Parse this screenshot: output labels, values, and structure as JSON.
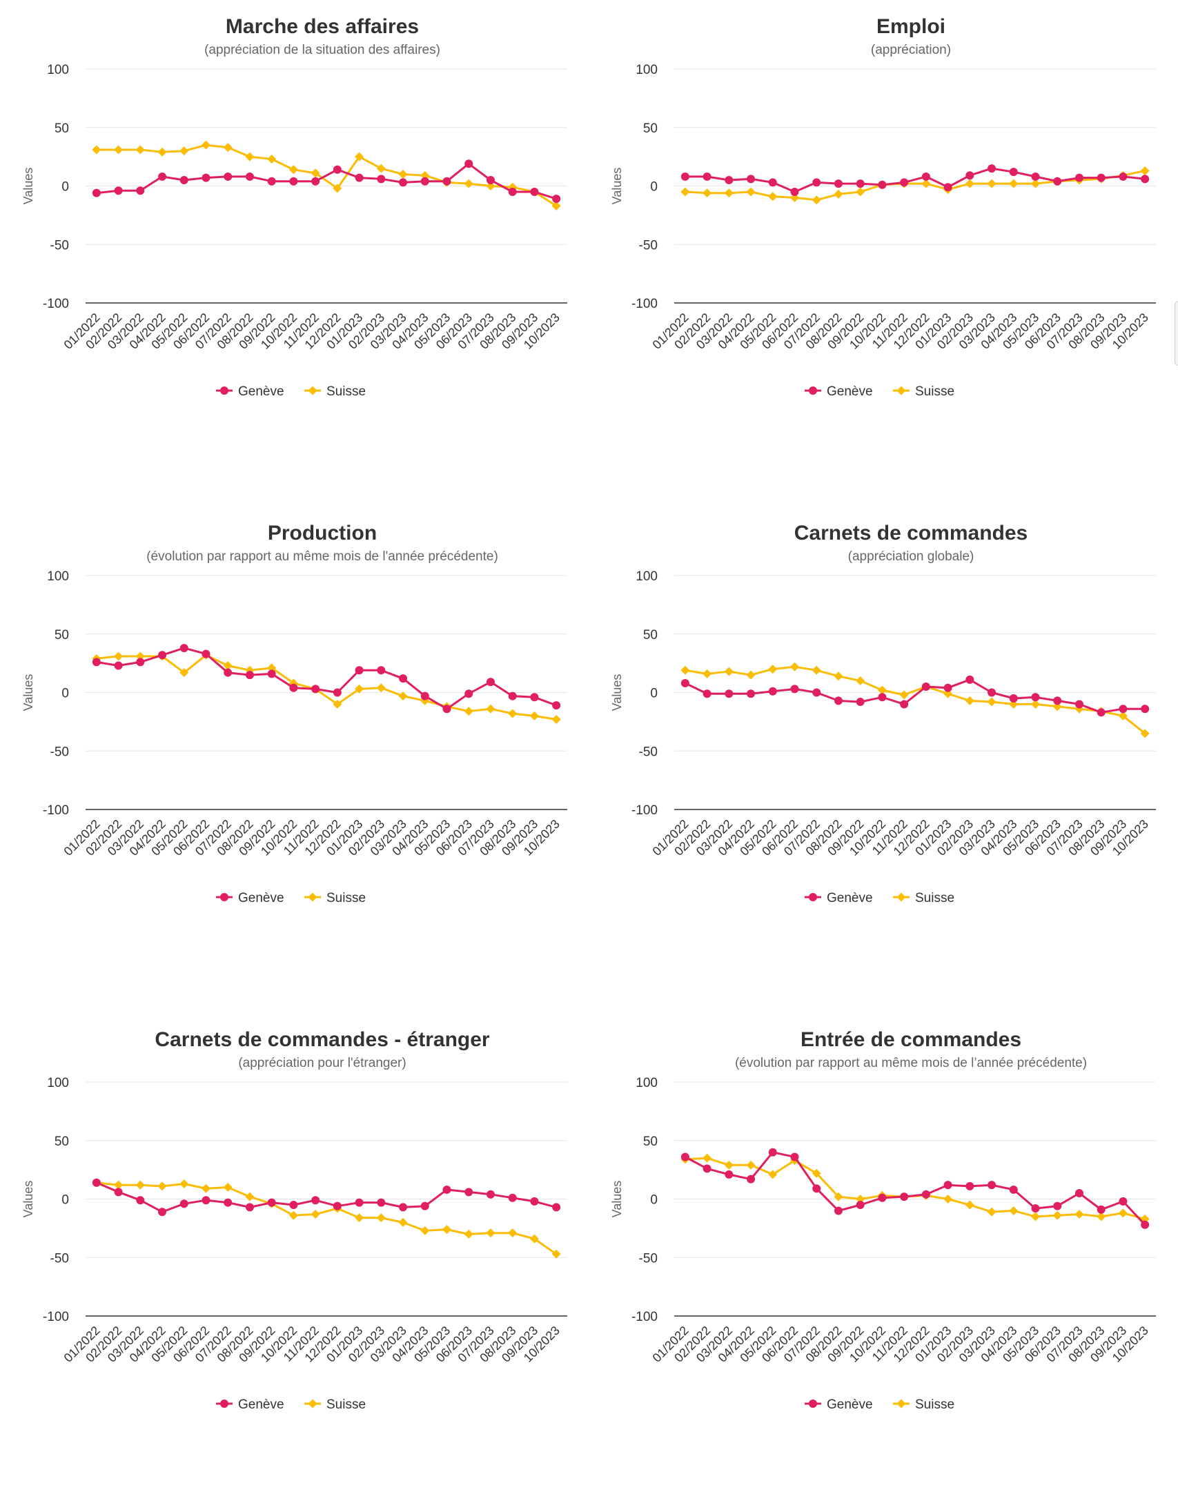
{
  "colors": {
    "geneve": "#e01f5f",
    "suisse": "#fbbc05"
  },
  "chart_data": [
    {
      "type": "line",
      "title": "Marche des affaires",
      "subtitle": "(appréciation de la situation des affaires)",
      "ylabel": "Values",
      "ylim": [
        -100,
        100
      ],
      "yticks": [
        "100",
        "50",
        "0",
        "-50",
        "-100"
      ],
      "categories": [
        "01/2022",
        "02/2022",
        "03/2022",
        "04/2022",
        "05/2022",
        "06/2022",
        "07/2022",
        "08/2022",
        "09/2022",
        "10/2022",
        "11/2022",
        "12/2022",
        "01/2023",
        "02/2023",
        "03/2023",
        "04/2023",
        "05/2023",
        "06/2023",
        "07/2023",
        "08/2023",
        "09/2023",
        "10/2023"
      ],
      "legend": [
        "Genève",
        "Suisse"
      ],
      "grid": true,
      "series": [
        {
          "name": "Genève",
          "values": [
            -6,
            -4,
            -4,
            8,
            5,
            7,
            8,
            8,
            4,
            4,
            4,
            14,
            7,
            6,
            3,
            4,
            4,
            19,
            5,
            -5,
            -5,
            -11
          ]
        },
        {
          "name": "Suisse",
          "values": [
            31,
            31,
            31,
            29,
            30,
            35,
            33,
            25,
            23,
            14,
            11,
            -2,
            25,
            15,
            10,
            9,
            3,
            2,
            0,
            -1,
            -5,
            -17
          ]
        }
      ]
    },
    {
      "type": "line",
      "title": "Emploi",
      "subtitle": "(appréciation)",
      "ylabel": "Values",
      "ylim": [
        -100,
        100
      ],
      "yticks": [
        "100",
        "50",
        "0",
        "-50",
        "-100"
      ],
      "categories": [
        "01/2022",
        "02/2022",
        "03/2022",
        "04/2022",
        "05/2022",
        "06/2022",
        "07/2022",
        "08/2022",
        "09/2022",
        "10/2022",
        "11/2022",
        "12/2022",
        "01/2023",
        "02/2023",
        "03/2023",
        "04/2023",
        "05/2023",
        "06/2023",
        "07/2023",
        "08/2023",
        "09/2023",
        "10/2023"
      ],
      "legend": [
        "Genève",
        "Suisse"
      ],
      "grid": true,
      "series": [
        {
          "name": "Genève",
          "values": [
            8,
            8,
            5,
            6,
            3,
            -5,
            3,
            2,
            2,
            1,
            3,
            8,
            -1,
            9,
            15,
            12,
            8,
            4,
            7,
            7,
            8,
            6
          ]
        },
        {
          "name": "Suisse",
          "values": [
            -5,
            -6,
            -6,
            -5,
            -9,
            -10,
            -12,
            -7,
            -5,
            1,
            2,
            2,
            -3,
            2,
            2,
            2,
            2,
            4,
            5,
            6,
            9,
            13
          ]
        }
      ]
    },
    {
      "type": "line",
      "title": "Production",
      "subtitle": "(évolution par rapport au même mois de l'année précédente)",
      "ylabel": "Values",
      "ylim": [
        -100,
        100
      ],
      "yticks": [
        "100",
        "50",
        "0",
        "-50",
        "-100"
      ],
      "categories": [
        "01/2022",
        "02/2022",
        "03/2022",
        "04/2022",
        "05/2022",
        "06/2022",
        "07/2022",
        "08/2022",
        "09/2022",
        "10/2022",
        "11/2022",
        "12/2022",
        "01/2023",
        "02/2023",
        "03/2023",
        "04/2023",
        "05/2023",
        "06/2023",
        "07/2023",
        "08/2023",
        "09/2023",
        "10/2023"
      ],
      "legend": [
        "Genève",
        "Suisse"
      ],
      "grid": true,
      "series": [
        {
          "name": "Genève",
          "values": [
            26,
            23,
            26,
            32,
            38,
            33,
            17,
            15,
            16,
            4,
            3,
            0,
            19,
            19,
            12,
            -3,
            -14,
            -1,
            9,
            -3,
            -4,
            -11
          ]
        },
        {
          "name": "Suisse",
          "values": [
            29,
            31,
            31,
            31,
            17,
            32,
            23,
            19,
            21,
            8,
            3,
            -10,
            3,
            4,
            -3,
            -7,
            -12,
            -16,
            -14,
            -18,
            -20,
            -23
          ]
        }
      ]
    },
    {
      "type": "line",
      "title": "Carnets de commandes",
      "subtitle": "(appréciation globale)",
      "ylabel": "Values",
      "ylim": [
        -100,
        100
      ],
      "yticks": [
        "100",
        "50",
        "0",
        "-50",
        "-100"
      ],
      "categories": [
        "01/2022",
        "02/2022",
        "03/2022",
        "04/2022",
        "05/2022",
        "06/2022",
        "07/2022",
        "08/2022",
        "09/2022",
        "10/2022",
        "11/2022",
        "12/2022",
        "01/2023",
        "02/2023",
        "03/2023",
        "04/2023",
        "05/2023",
        "06/2023",
        "07/2023",
        "08/2023",
        "09/2023",
        "10/2023"
      ],
      "legend": [
        "Genève",
        "Suisse"
      ],
      "grid": true,
      "series": [
        {
          "name": "Genève",
          "values": [
            8,
            -1,
            -1,
            -1,
            1,
            3,
            0,
            -7,
            -8,
            -4,
            -10,
            5,
            4,
            11,
            0,
            -5,
            -4,
            -7,
            -10,
            -17,
            -14,
            -14
          ]
        },
        {
          "name": "Suisse",
          "values": [
            19,
            16,
            18,
            15,
            20,
            22,
            19,
            14,
            10,
            2,
            -2,
            5,
            -1,
            -7,
            -8,
            -10,
            -10,
            -12,
            -14,
            -16,
            -20,
            -35
          ]
        }
      ]
    },
    {
      "type": "line",
      "title": "Carnets de commandes - étranger",
      "subtitle": "(appréciation pour l'étranger)",
      "ylabel": "Values",
      "ylim": [
        -100,
        100
      ],
      "yticks": [
        "100",
        "50",
        "0",
        "-50",
        "-100"
      ],
      "categories": [
        "01/2022",
        "02/2022",
        "03/2022",
        "04/2022",
        "05/2022",
        "06/2022",
        "07/2022",
        "08/2022",
        "09/2022",
        "10/2022",
        "11/2022",
        "12/2022",
        "01/2023",
        "02/2023",
        "03/2023",
        "04/2023",
        "05/2023",
        "06/2023",
        "07/2023",
        "08/2023",
        "09/2023",
        "10/2023"
      ],
      "legend": [
        "Genève",
        "Suisse"
      ],
      "grid": true,
      "series": [
        {
          "name": "Genève",
          "values": [
            14,
            6,
            -1,
            -11,
            -4,
            -1,
            -3,
            -7,
            -3,
            -5,
            -1,
            -6,
            -3,
            -3,
            -7,
            -6,
            8,
            6,
            4,
            1,
            -2,
            -7
          ]
        },
        {
          "name": "Suisse",
          "values": [
            14,
            12,
            12,
            11,
            13,
            9,
            10,
            2,
            -4,
            -14,
            -13,
            -8,
            -16,
            -16,
            -20,
            -27,
            -26,
            -30,
            -29,
            -29,
            -34,
            -47
          ]
        }
      ]
    },
    {
      "type": "line",
      "title": "Entrée de commandes",
      "subtitle": "(évolution par rapport au même mois de l’année précédente)",
      "ylabel": "Values",
      "ylim": [
        -100,
        100
      ],
      "yticks": [
        "100",
        "50",
        "0",
        "-50",
        "-100"
      ],
      "categories": [
        "01/2022",
        "02/2022",
        "03/2022",
        "04/2022",
        "05/2022",
        "06/2022",
        "07/2022",
        "08/2022",
        "09/2022",
        "10/2022",
        "11/2022",
        "12/2022",
        "01/2023",
        "02/2023",
        "03/2023",
        "04/2023",
        "05/2023",
        "06/2023",
        "07/2023",
        "08/2023",
        "09/2023",
        "10/2023"
      ],
      "legend": [
        "Genève",
        "Suisse"
      ],
      "grid": true,
      "series": [
        {
          "name": "Genève",
          "values": [
            36,
            26,
            21,
            17,
            40,
            36,
            9,
            -10,
            -5,
            1,
            2,
            4,
            12,
            11,
            12,
            8,
            -8,
            -6,
            5,
            -9,
            -2,
            -22
          ]
        },
        {
          "name": "Suisse",
          "values": [
            34,
            35,
            29,
            29,
            21,
            33,
            22,
            2,
            0,
            3,
            2,
            3,
            0,
            -5,
            -11,
            -10,
            -15,
            -14,
            -13,
            -15,
            -12,
            -17
          ]
        }
      ]
    }
  ]
}
